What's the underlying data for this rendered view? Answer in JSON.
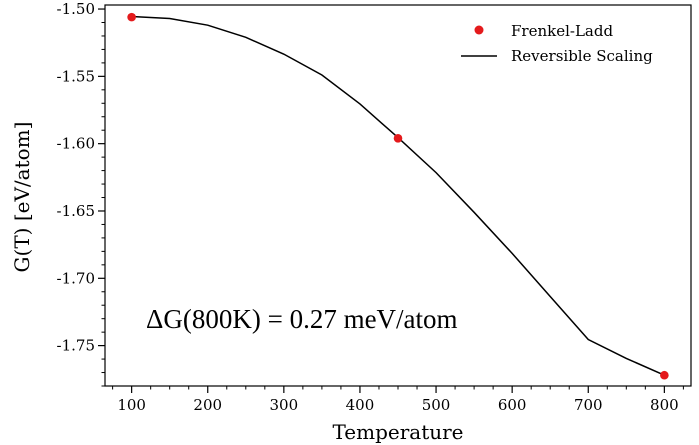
{
  "chart_data": {
    "type": "line",
    "xlabel": "Temperature",
    "ylabel": "G(T) [eV/atom]",
    "xlim": [
      65,
      835
    ],
    "ylim": [
      -1.78,
      -1.497
    ],
    "xticks": [
      100,
      200,
      300,
      400,
      500,
      600,
      700,
      800
    ],
    "yticks": [
      -1.5,
      -1.55,
      -1.6,
      -1.65,
      -1.7,
      -1.75
    ],
    "xtick_labels": [
      "100",
      "200",
      "300",
      "400",
      "500",
      "600",
      "700",
      "800"
    ],
    "ytick_labels": [
      "-1.50",
      "-1.55",
      "-1.60",
      "-1.65",
      "-1.70",
      "-1.75"
    ],
    "grid": false,
    "legend": {
      "placement": "top-right",
      "entries": [
        "Frenkel-Ladd",
        "Reversible Scaling"
      ]
    },
    "series": [
      {
        "name": "Frenkel-Ladd",
        "type": "scatter",
        "color": "#e41a1c",
        "points": [
          {
            "x": 100,
            "y": -1.506
          },
          {
            "x": 450,
            "y": -1.596
          },
          {
            "x": 800,
            "y": -1.772
          }
        ]
      },
      {
        "name": "Reversible Scaling",
        "type": "line",
        "color": "#000000",
        "points": [
          {
            "x": 100,
            "y": -1.5055
          },
          {
            "x": 150,
            "y": -1.507
          },
          {
            "x": 200,
            "y": -1.512
          },
          {
            "x": 250,
            "y": -1.521
          },
          {
            "x": 300,
            "y": -1.5335
          },
          {
            "x": 350,
            "y": -1.549
          },
          {
            "x": 400,
            "y": -1.5705
          },
          {
            "x": 450,
            "y": -1.5955
          },
          {
            "x": 500,
            "y": -1.6215
          },
          {
            "x": 550,
            "y": -1.651
          },
          {
            "x": 600,
            "y": -1.6815
          },
          {
            "x": 650,
            "y": -1.7135
          },
          {
            "x": 700,
            "y": -1.7455
          },
          {
            "x": 750,
            "y": -1.7595
          },
          {
            "x": 800,
            "y": -1.772
          }
        ]
      }
    ],
    "annotation": "ΔG(800K) = 0.27 meV/atom"
  }
}
